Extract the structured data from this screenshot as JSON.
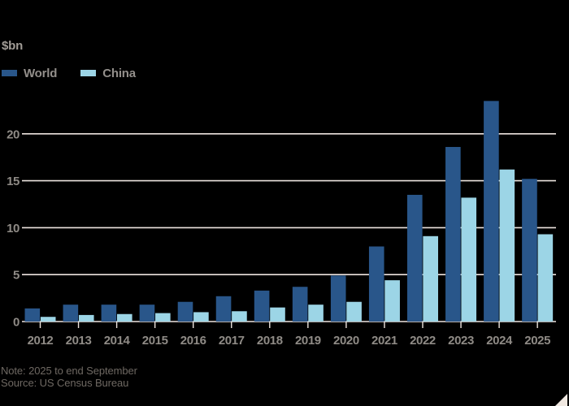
{
  "unit_label": "$bn",
  "legend": {
    "items": [
      {
        "label": "World",
        "color": "#29568A"
      },
      {
        "label": "China",
        "color": "#9CD5E6"
      }
    ]
  },
  "footer": {
    "note": "Note: 2025 to end September",
    "source": "Source: US Census Bureau"
  },
  "colors": {
    "background": "#000000",
    "gridline": "#EDE4DF",
    "axis_text": "#8F8B86",
    "legend_text": "#938F8B",
    "unit_text": "#A19C96",
    "footer_text": "#6E6862",
    "corner_triangle": "#F0E8E1",
    "world": "#29568A",
    "china": "#9CD5E6"
  },
  "chart_data": {
    "type": "bar",
    "title": "",
    "xlabel": "",
    "ylabel": "$bn",
    "categories": [
      "2012",
      "2013",
      "2014",
      "2015",
      "2016",
      "2017",
      "2018",
      "2019",
      "2020",
      "2021",
      "2022",
      "2023",
      "2024",
      "2025"
    ],
    "series": [
      {
        "name": "World",
        "color": "#29568A",
        "values": [
          1.4,
          1.8,
          1.8,
          1.8,
          2.1,
          2.7,
          3.3,
          3.7,
          4.9,
          8.0,
          13.5,
          18.6,
          23.5,
          15.2
        ]
      },
      {
        "name": "China",
        "color": "#9CD5E6",
        "values": [
          0.5,
          0.7,
          0.8,
          0.9,
          1.0,
          1.1,
          1.5,
          1.8,
          2.1,
          4.4,
          9.1,
          13.2,
          16.2,
          9.3
        ]
      }
    ],
    "ylim": [
      0,
      25
    ],
    "yticks": [
      0,
      5,
      10,
      15,
      20
    ],
    "grid": true,
    "legend_position": "top-left"
  }
}
